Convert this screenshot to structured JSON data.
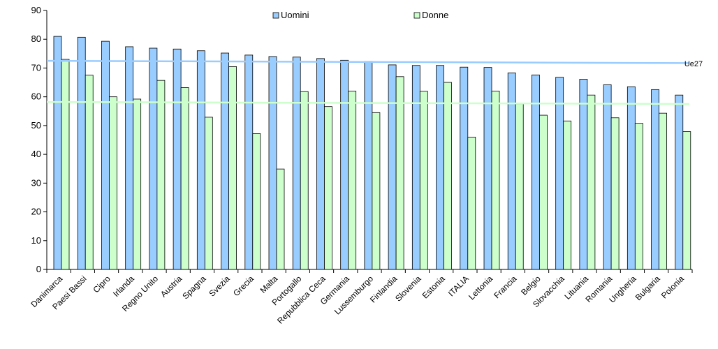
{
  "chart_data": {
    "type": "bar",
    "categories": [
      "Danimarca",
      "Paesi Bassi",
      "Cipro",
      "Irlanda",
      "Regno Unito",
      "Austria",
      "Spagna",
      "Svezia",
      "Grecia",
      "Malta",
      "Portogallo",
      "Repubblica Ceca",
      "Germania",
      "Lussemburgo",
      "Finlandia",
      "Slovenia",
      "Estonia",
      "ITALIA",
      "Lettonia",
      "Francia",
      "Belgio",
      "Slovacchia",
      "Lituania",
      "Romania",
      "Ungheria",
      "Bulgaria",
      "Polonia"
    ],
    "series": [
      {
        "name": "Uomini",
        "color": "#99CCFF",
        "values": [
          81.0,
          80.7,
          79.3,
          77.4,
          76.9,
          76.6,
          76.0,
          75.2,
          74.5,
          74.0,
          73.8,
          73.3,
          72.7,
          72.3,
          71.1,
          70.9,
          70.9,
          70.3,
          70.2,
          68.3,
          67.6,
          66.8,
          66.1,
          64.2,
          63.5,
          62.5,
          60.6
        ]
      },
      {
        "name": "Donne",
        "color": "#CCFFCC",
        "values": [
          73.0,
          67.5,
          60.0,
          59.2,
          65.7,
          63.2,
          52.9,
          70.5,
          47.2,
          34.9,
          61.8,
          56.6,
          62.0,
          54.5,
          67.0,
          61.9,
          65.0,
          46.0,
          62.0,
          57.5,
          53.6,
          51.6,
          60.6,
          52.7,
          50.8,
          54.3,
          47.9
        ]
      }
    ],
    "reference_lines": [
      {
        "label": "",
        "color": "#99CCFF",
        "start": 72.5,
        "end": 71.7
      },
      {
        "label": "Ue27",
        "color": "#CCFFCC",
        "start": 58.2,
        "end": 57.5
      }
    ],
    "ylim": [
      0,
      90
    ],
    "yticks": [
      0,
      10,
      20,
      30,
      40,
      50,
      60,
      70,
      80,
      90
    ],
    "title": "",
    "xlabel": "",
    "ylabel": "",
    "grid": false,
    "legend_position": "top-center"
  }
}
